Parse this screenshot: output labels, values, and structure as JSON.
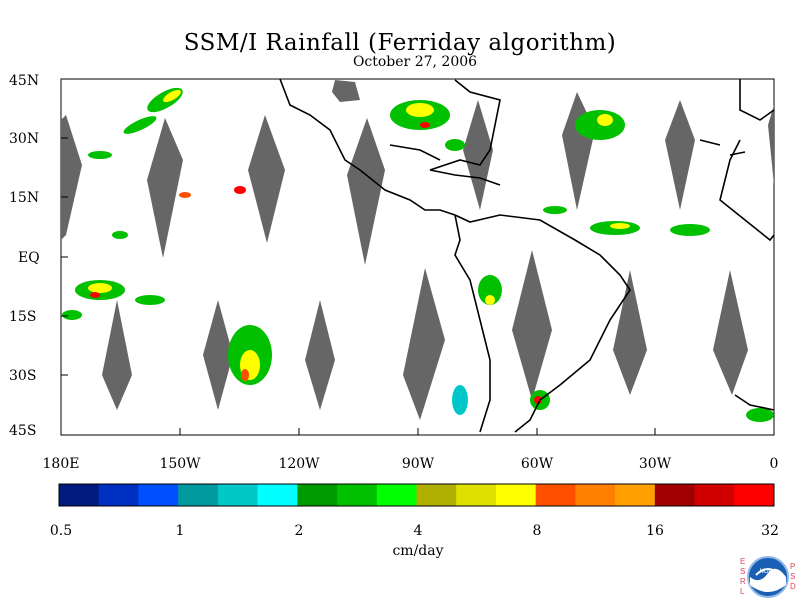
{
  "title": "SSM/I Rainfall (Ferriday algorithm)",
  "subtitle": "October 27, 2006",
  "lat_labels": [
    "45N",
    "30N",
    "15N",
    "EQ",
    "15S",
    "30S",
    "45S"
  ],
  "lon_labels": [
    "180E",
    "150W",
    "120W",
    "90W",
    "60W",
    "30W",
    "0"
  ],
  "colorbar": {
    "unit_label": "cm/day",
    "tick_labels": [
      "0.5",
      "1",
      "2",
      "4",
      "8",
      "16",
      "32"
    ],
    "colors": [
      "#001a80",
      "#0030c0",
      "#0050ff",
      "#00999e",
      "#00c8c8",
      "#00ffff",
      "#009900",
      "#00c000",
      "#00ff00",
      "#b0b000",
      "#e0e000",
      "#ffff00",
      "#ff5000",
      "#ff8000",
      "#ffa000",
      "#a00000",
      "#d00000",
      "#ff0000"
    ]
  },
  "logo": {
    "left_text": [
      "E",
      "S",
      "R",
      "L"
    ],
    "right_text": [
      "P",
      "S",
      "D"
    ],
    "center_text": "NOAA"
  },
  "colors": {
    "gap": "#666666",
    "land_outline": "#000000",
    "frame": "#000000"
  }
}
